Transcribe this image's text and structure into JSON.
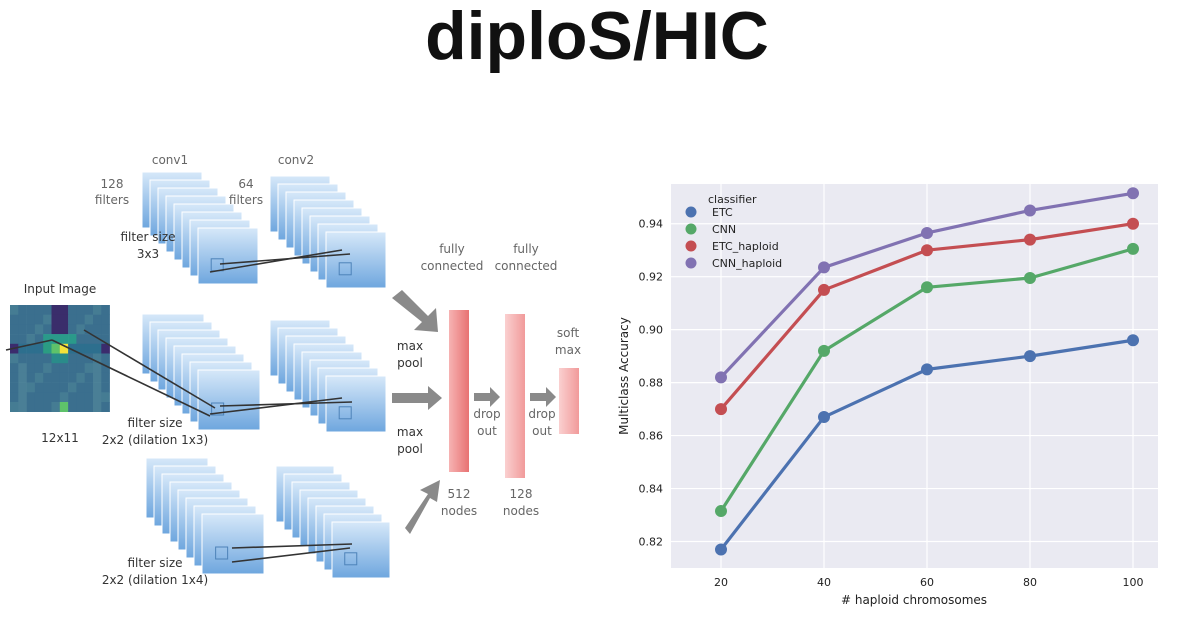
{
  "title": "diploS/HIC",
  "diagram": {
    "input_label": "Input Image",
    "input_size": "12x11",
    "conv1": "conv1",
    "conv2": "conv2",
    "conv1_filters_count": "128",
    "conv1_filters_word": "filters",
    "conv2_filters_count": "64",
    "conv2_filters_word": "filters",
    "filter_size_word": "filter size",
    "filter_size_1": "3x3",
    "filter_size_2": "2x2 (dilation 1x3)",
    "filter_size_3": "2x2 (dilation 1x4)",
    "max_word": "max",
    "pool_word": "pool",
    "fully_word": "fully",
    "connected_word": "connected",
    "drop_word": "drop",
    "out_word": "out",
    "soft_word": "soft",
    "softmax_max_word": "max",
    "nodes_512": "512",
    "nodes_128": "128",
    "nodes_word": "nodes",
    "colors": {
      "filter_light": "#cfe3f7",
      "filter_dark": "#6ea6de",
      "dense": "#ee7d7d",
      "arrow": "#8a8a8a"
    }
  },
  "chart_data": {
    "type": "line",
    "title": "",
    "xlabel": "# haploid chromosomes",
    "ylabel": "Multiclass Accuracy",
    "categories": [
      "20",
      "40",
      "60",
      "80",
      "100"
    ],
    "ylim": [
      0.81,
      0.955
    ],
    "yticks": [
      "0.82",
      "0.84",
      "0.86",
      "0.88",
      "0.90",
      "0.92",
      "0.94"
    ],
    "grid": true,
    "legend_title": "classifier",
    "legend_position": "top-left",
    "background": "#eaeaf2",
    "series": [
      {
        "name": "ETC",
        "color": "#4c72b0",
        "values": [
          0.817,
          0.867,
          0.885,
          0.89,
          0.896
        ]
      },
      {
        "name": "CNN",
        "color": "#55a868",
        "values": [
          0.8315,
          0.892,
          0.916,
          0.9195,
          0.9305
        ]
      },
      {
        "name": "ETC_haploid",
        "color": "#c44e52",
        "values": [
          0.87,
          0.915,
          0.93,
          0.934,
          0.94
        ]
      },
      {
        "name": "CNN_haploid",
        "color": "#8172b2",
        "values": [
          0.882,
          0.9235,
          0.9365,
          0.945,
          0.9515
        ]
      }
    ]
  }
}
